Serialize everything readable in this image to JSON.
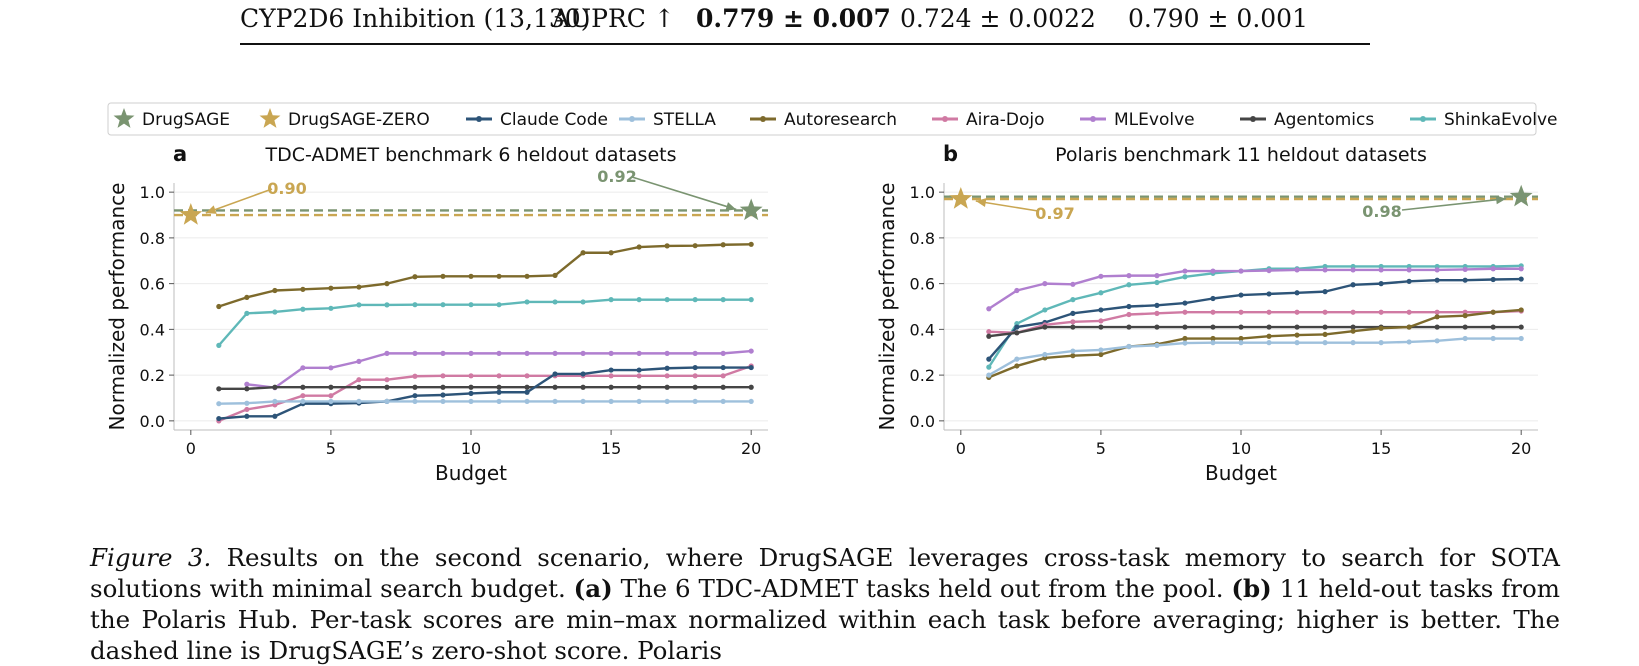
{
  "table": {
    "row_label": "CYP2D6 Inhibition (13,130)",
    "metric": "AUPRC ↑",
    "best": "0.779 ± 0.007",
    "col2": "0.724 ± 0.0022",
    "col3": "0.790 ± 0.001"
  },
  "legend": [
    {
      "name": "DrugSAGE",
      "color": "#7a9471",
      "marker": "star"
    },
    {
      "name": "DrugSAGE-ZERO",
      "color": "#c9a652",
      "marker": "star"
    },
    {
      "name": "Claude Code",
      "color": "#2d5478",
      "marker": "line"
    },
    {
      "name": "STELLA",
      "color": "#9ec0dc",
      "marker": "line"
    },
    {
      "name": "Autoresearch",
      "color": "#7d6a2c",
      "marker": "line"
    },
    {
      "name": "Aira-Dojo",
      "color": "#d07aa3",
      "marker": "line"
    },
    {
      "name": "MLEvolve",
      "color": "#b07fcf",
      "marker": "line"
    },
    {
      "name": "Agentomics",
      "color": "#454545",
      "marker": "line"
    },
    {
      "name": "ShinkaEvolve",
      "color": "#5fb8b8",
      "marker": "line"
    }
  ],
  "chart_data": [
    {
      "type": "line",
      "panel": "a",
      "title": "TDC-ADMET benchmark 6 heldout datasets",
      "xlabel": "Budget",
      "ylabel": "Normalized performance",
      "xlim": [
        -0.6,
        20.6
      ],
      "ylim": [
        -0.04,
        1.04
      ],
      "xticks": [
        0,
        5,
        10,
        15,
        20
      ],
      "yticks": [
        0.0,
        0.2,
        0.4,
        0.6,
        0.8,
        1.0
      ],
      "grid": true,
      "x": [
        1,
        2,
        3,
        4,
        5,
        6,
        7,
        8,
        9,
        10,
        11,
        12,
        13,
        14,
        15,
        16,
        17,
        18,
        19,
        20
      ],
      "series": [
        {
          "name": "Autoresearch",
          "color": "#7d6a2c",
          "values": [
            0.5,
            0.54,
            0.57,
            0.575,
            0.58,
            0.585,
            0.6,
            0.63,
            0.632,
            0.632,
            0.632,
            0.632,
            0.636,
            0.735,
            0.735,
            0.76,
            0.765,
            0.766,
            0.77,
            0.772
          ]
        },
        {
          "name": "ShinkaEvolve",
          "color": "#5fb8b8",
          "values": [
            0.33,
            0.47,
            0.476,
            0.488,
            0.492,
            0.507,
            0.507,
            0.508,
            0.508,
            0.508,
            0.508,
            0.52,
            0.52,
            0.52,
            0.53,
            0.53,
            0.53,
            0.53,
            0.53,
            0.53
          ]
        },
        {
          "name": "MLEvolve",
          "color": "#b07fcf",
          "values": [
            null,
            0.16,
            0.145,
            0.232,
            0.232,
            0.26,
            0.295,
            0.295,
            0.295,
            0.295,
            0.295,
            0.295,
            0.295,
            0.295,
            0.295,
            0.295,
            0.295,
            0.295,
            0.295,
            0.305
          ]
        },
        {
          "name": "Aira-Dojo",
          "color": "#d07aa3",
          "values": [
            0.0,
            0.05,
            0.07,
            0.11,
            0.11,
            0.18,
            0.18,
            0.195,
            0.197,
            0.197,
            0.197,
            0.197,
            0.197,
            0.197,
            0.197,
            0.197,
            0.197,
            0.197,
            0.197,
            0.24
          ]
        },
        {
          "name": "Agentomics",
          "color": "#454545",
          "values": [
            0.14,
            0.14,
            0.147,
            0.147,
            0.147,
            0.147,
            0.147,
            0.147,
            0.147,
            0.147,
            0.147,
            0.147,
            0.147,
            0.147,
            0.147,
            0.147,
            0.147,
            0.147,
            0.147,
            0.147
          ]
        },
        {
          "name": "Claude Code",
          "color": "#2d5478",
          "values": [
            0.01,
            0.02,
            0.02,
            0.075,
            0.075,
            0.078,
            0.085,
            0.11,
            0.113,
            0.12,
            0.125,
            0.125,
            0.205,
            0.205,
            0.222,
            0.222,
            0.23,
            0.233,
            0.233,
            0.233
          ]
        },
        {
          "name": "STELLA",
          "color": "#9ec0dc",
          "values": [
            0.075,
            0.077,
            0.085,
            0.085,
            0.085,
            0.085,
            0.085,
            0.085,
            0.085,
            0.085,
            0.085,
            0.085,
            0.085,
            0.085,
            0.085,
            0.085,
            0.085,
            0.085,
            0.085,
            0.085
          ]
        }
      ],
      "drugsage": {
        "x": 20,
        "value": 0.92,
        "label": "0.92"
      },
      "drugsage_zero": {
        "x": 0,
        "value": 0.9,
        "label": "0.90"
      }
    },
    {
      "type": "line",
      "panel": "b",
      "title": "Polaris benchmark 11 heldout datasets",
      "xlabel": "Budget",
      "ylabel": "Normalized performance",
      "xlim": [
        -0.6,
        20.6
      ],
      "ylim": [
        -0.04,
        1.04
      ],
      "xticks": [
        0,
        5,
        10,
        15,
        20
      ],
      "yticks": [
        0.0,
        0.2,
        0.4,
        0.6,
        0.8,
        1.0
      ],
      "grid": true,
      "x": [
        1,
        2,
        3,
        4,
        5,
        6,
        7,
        8,
        9,
        10,
        11,
        12,
        13,
        14,
        15,
        16,
        17,
        18,
        19,
        20
      ],
      "series": [
        {
          "name": "ShinkaEvolve",
          "color": "#5fb8b8",
          "values": [
            0.235,
            0.425,
            0.485,
            0.53,
            0.56,
            0.595,
            0.605,
            0.63,
            0.645,
            0.655,
            0.665,
            0.665,
            0.675,
            0.675,
            0.675,
            0.675,
            0.675,
            0.675,
            0.675,
            0.678
          ]
        },
        {
          "name": "MLEvolve",
          "color": "#b07fcf",
          "values": [
            0.49,
            0.57,
            0.6,
            0.597,
            0.632,
            0.635,
            0.635,
            0.655,
            0.655,
            0.655,
            0.657,
            0.66,
            0.66,
            0.66,
            0.66,
            0.66,
            0.66,
            0.662,
            0.665,
            0.665
          ]
        },
        {
          "name": "Claude Code",
          "color": "#2d5478",
          "values": [
            0.27,
            0.41,
            0.43,
            0.47,
            0.485,
            0.5,
            0.505,
            0.515,
            0.535,
            0.55,
            0.555,
            0.56,
            0.565,
            0.595,
            0.6,
            0.61,
            0.615,
            0.615,
            0.618,
            0.62
          ]
        },
        {
          "name": "Aira-Dojo",
          "color": "#d07aa3",
          "values": [
            0.39,
            0.385,
            0.42,
            0.433,
            0.437,
            0.465,
            0.47,
            0.475,
            0.475,
            0.475,
            0.475,
            0.475,
            0.475,
            0.475,
            0.475,
            0.475,
            0.475,
            0.475,
            0.475,
            0.48
          ]
        },
        {
          "name": "Agentomics",
          "color": "#454545",
          "values": [
            0.37,
            0.385,
            0.41,
            0.41,
            0.41,
            0.41,
            0.41,
            0.41,
            0.41,
            0.41,
            0.41,
            0.41,
            0.41,
            0.41,
            0.41,
            0.41,
            0.41,
            0.41,
            0.41,
            0.41
          ]
        },
        {
          "name": "Autoresearch",
          "color": "#7d6a2c",
          "values": [
            0.19,
            0.24,
            0.275,
            0.285,
            0.29,
            0.325,
            0.335,
            0.36,
            0.36,
            0.36,
            0.37,
            0.375,
            0.378,
            0.392,
            0.405,
            0.41,
            0.455,
            0.46,
            0.475,
            0.485
          ]
        },
        {
          "name": "STELLA",
          "color": "#9ec0dc",
          "values": [
            0.2,
            0.27,
            0.29,
            0.305,
            0.31,
            0.325,
            0.33,
            0.34,
            0.342,
            0.342,
            0.342,
            0.342,
            0.342,
            0.342,
            0.342,
            0.345,
            0.35,
            0.36,
            0.36,
            0.36
          ]
        }
      ],
      "drugsage": {
        "x": 20,
        "value": 0.98,
        "label": "0.98"
      },
      "drugsage_zero": {
        "x": 0,
        "value": 0.97,
        "label": "0.97"
      }
    }
  ],
  "caption": {
    "label": "Figure 3.",
    "text": "Results on the second scenario, where DrugSAGE leverages cross-task memory to search for SOTA solutions with minimal search budget.",
    "a_label": "(a)",
    "a_text": "The 6 TDC-ADMET tasks held out from the pool.",
    "b_label": "(b)",
    "b_text": "11 held-out tasks from the Polaris Hub. Per-task scores are",
    "line3": "min–max normalized within each task before averaging; higher is better. The dashed line is DrugSAGE’s zero-shot score. Polaris"
  }
}
